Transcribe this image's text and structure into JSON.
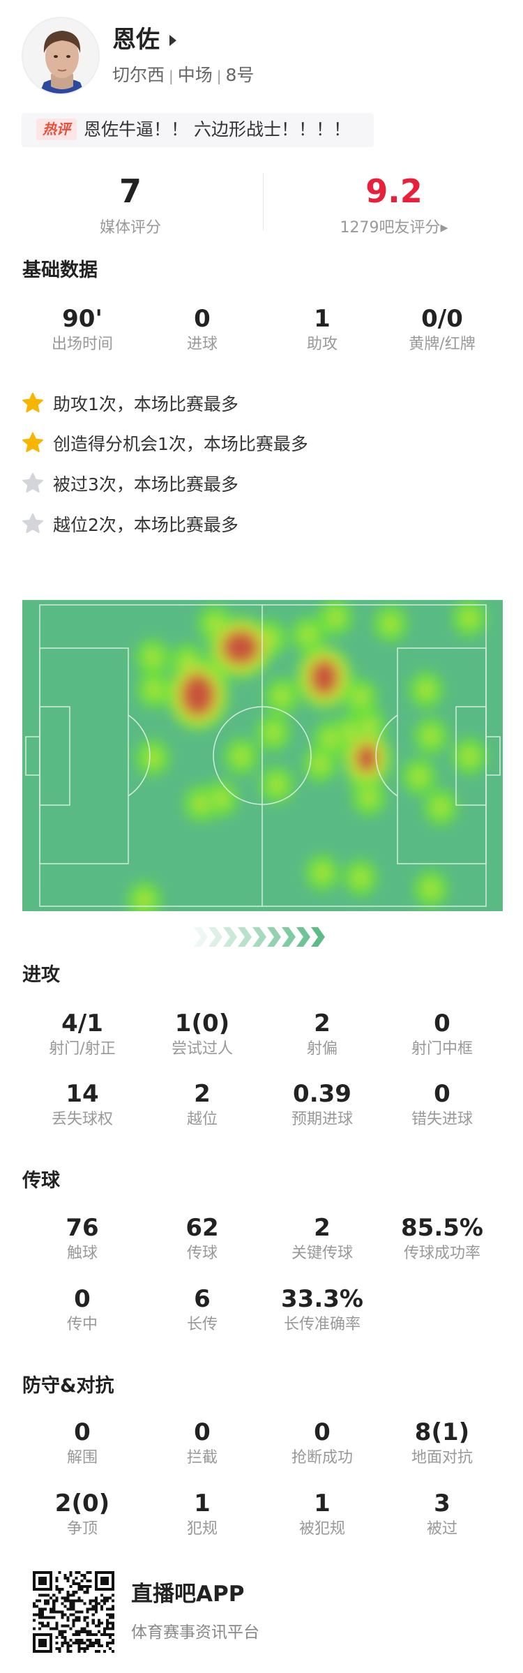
{
  "player": {
    "name": "恩佐",
    "team": "切尔西",
    "position": "中场",
    "number": "8号"
  },
  "hot_comment": {
    "badge": "热评",
    "text": "恩佐牛逼！！ 六边形战士！！！！"
  },
  "ratings": {
    "media": {
      "value": "7",
      "label": "媒体评分"
    },
    "fans": {
      "value": "9.2",
      "label": "1279吧友评分▸",
      "color": "#e8203a"
    }
  },
  "basic": {
    "title": "基础数据",
    "stats": [
      {
        "value": "90'",
        "label": "出场时间"
      },
      {
        "value": "0",
        "label": "进球"
      },
      {
        "value": "1",
        "label": "助攻"
      },
      {
        "value": "0/0",
        "label": "黄牌/红牌"
      }
    ],
    "highlights": [
      {
        "text": "助攻1次，本场比赛最多",
        "star": "gold"
      },
      {
        "text": "创造得分机会1次，本场比赛最多",
        "star": "gold"
      },
      {
        "text": "被过3次，本场比赛最多",
        "star": "grey"
      },
      {
        "text": "越位2次，本场比赛最多",
        "star": "grey"
      }
    ]
  },
  "heatmap": {
    "type": "heatmap",
    "attack_direction": "right"
  },
  "attack": {
    "title": "进攻",
    "stats": [
      {
        "value": "4/1",
        "label": "射门/射正"
      },
      {
        "value": "1(0)",
        "label": "尝试过人"
      },
      {
        "value": "2",
        "label": "射偏"
      },
      {
        "value": "0",
        "label": "射门中框"
      },
      {
        "value": "14",
        "label": "丢失球权"
      },
      {
        "value": "2",
        "label": "越位"
      },
      {
        "value": "0.39",
        "label": "预期进球"
      },
      {
        "value": "0",
        "label": "错失进球"
      }
    ]
  },
  "passing": {
    "title": "传球",
    "stats": [
      {
        "value": "76",
        "label": "触球"
      },
      {
        "value": "62",
        "label": "传球"
      },
      {
        "value": "2",
        "label": "关键传球"
      },
      {
        "value": "85.5%",
        "label": "传球成功率"
      },
      {
        "value": "0",
        "label": "传中"
      },
      {
        "value": "6",
        "label": "长传"
      },
      {
        "value": "33.3%",
        "label": "长传准确率"
      }
    ]
  },
  "defense": {
    "title": "防守&对抗",
    "stats": [
      {
        "value": "0",
        "label": "解围"
      },
      {
        "value": "0",
        "label": "拦截"
      },
      {
        "value": "0",
        "label": "抢断成功"
      },
      {
        "value": "8(1)",
        "label": "地面对抗"
      },
      {
        "value": "2(0)",
        "label": "争顶"
      },
      {
        "value": "1",
        "label": "犯规"
      },
      {
        "value": "1",
        "label": "被犯规"
      },
      {
        "value": "3",
        "label": "被过"
      }
    ]
  },
  "footer": {
    "app": "直播吧APP",
    "slogan": "体育赛事资讯平台"
  },
  "colors": {
    "star_gold": "#f7b500",
    "star_grey": "#d3d5db",
    "pitch": "#5aba84",
    "accent_red": "#e8203a"
  }
}
